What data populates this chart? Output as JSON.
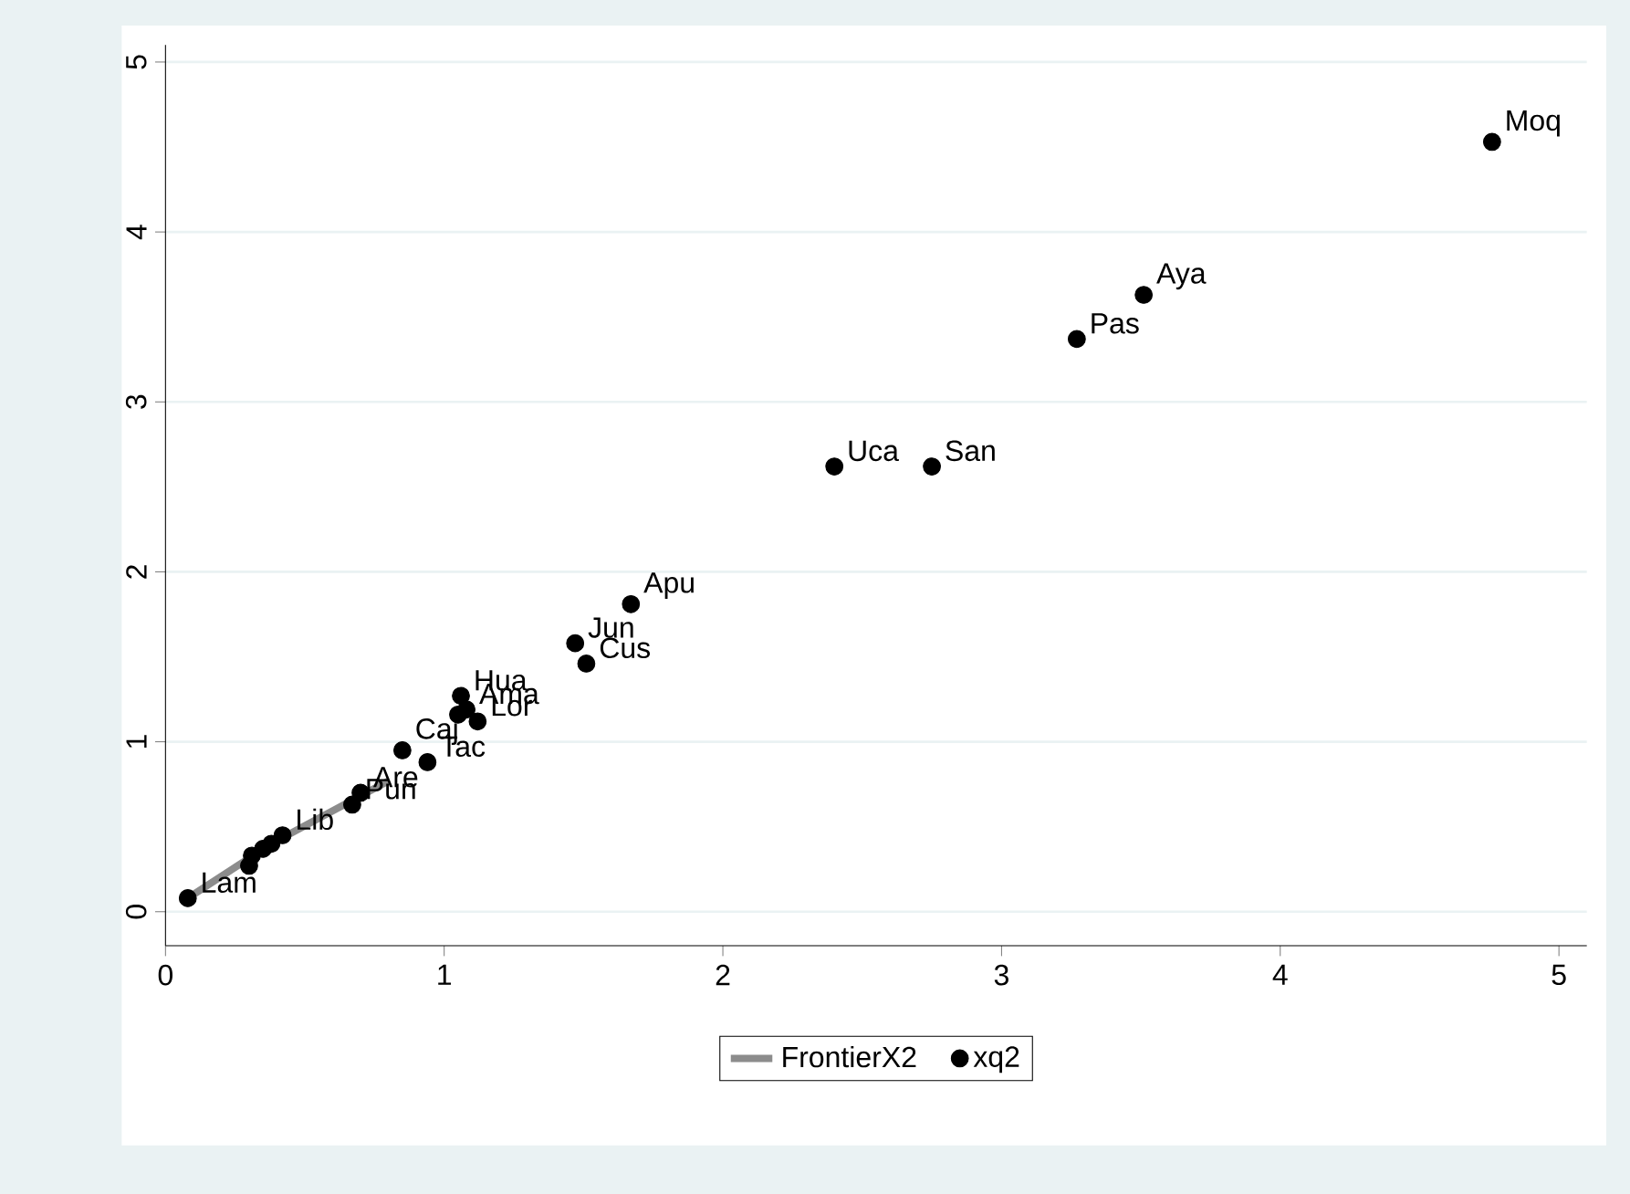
{
  "chart_data": {
    "type": "scatter",
    "xlim": [
      0,
      5.1
    ],
    "ylim": [
      -0.2,
      5.1
    ],
    "xticks": [
      0,
      1,
      2,
      3,
      4,
      5
    ],
    "yticks": [
      0,
      1,
      2,
      3,
      4,
      5
    ],
    "grid": "y",
    "legend": "bottom",
    "series": [
      {
        "name": "FrontierX2",
        "type": "line",
        "color": "#8c8c8c",
        "marker": "none",
        "x": [
          0.08,
          0.38,
          0.8
        ],
        "values": [
          0.08,
          0.4,
          0.77
        ]
      },
      {
        "name": "xq2",
        "color": "#000000",
        "marker": "circle",
        "x": [
          4.76,
          3.51,
          3.27,
          2.4,
          2.75,
          1.67,
          1.47,
          1.51,
          1.06,
          1.05,
          1.08,
          1.12,
          0.85,
          0.94,
          0.7,
          0.67,
          0.42,
          0.38,
          0.35,
          0.31,
          0.3,
          0.08
        ],
        "values": [
          4.53,
          3.63,
          3.37,
          2.62,
          2.62,
          1.81,
          1.58,
          1.46,
          1.27,
          1.16,
          1.19,
          1.12,
          0.95,
          0.88,
          0.7,
          0.63,
          0.45,
          0.4,
          0.37,
          0.33,
          0.27,
          0.08
        ]
      }
    ],
    "annotations": [
      {
        "text": "Moq",
        "x": 4.76,
        "y": 4.53
      },
      {
        "text": "Aya",
        "x": 3.51,
        "y": 3.63
      },
      {
        "text": "Pas",
        "x": 3.27,
        "y": 3.37
      },
      {
        "text": "Uca",
        "x": 2.4,
        "y": 2.62
      },
      {
        "text": "San",
        "x": 2.75,
        "y": 2.62
      },
      {
        "text": "Apu",
        "x": 1.67,
        "y": 1.81
      },
      {
        "text": "Jun",
        "x": 1.47,
        "y": 1.58
      },
      {
        "text": "Cus",
        "x": 1.51,
        "y": 1.46
      },
      {
        "text": "Hua",
        "x": 1.06,
        "y": 1.27
      },
      {
        "text": "Ama",
        "x": 1.08,
        "y": 1.19
      },
      {
        "text": "Lor",
        "x": 1.12,
        "y": 1.12
      },
      {
        "text": "Caj",
        "x": 0.85,
        "y": 0.95
      },
      {
        "text": "Tac",
        "x": 0.94,
        "y": 0.88
      },
      {
        "text": "Are",
        "x": 0.7,
        "y": 0.7
      },
      {
        "text": "Pun",
        "x": 0.67,
        "y": 0.63
      },
      {
        "text": "Lib",
        "x": 0.42,
        "y": 0.45
      },
      {
        "text": "Lam",
        "x": 0.08,
        "y": 0.08
      }
    ]
  }
}
